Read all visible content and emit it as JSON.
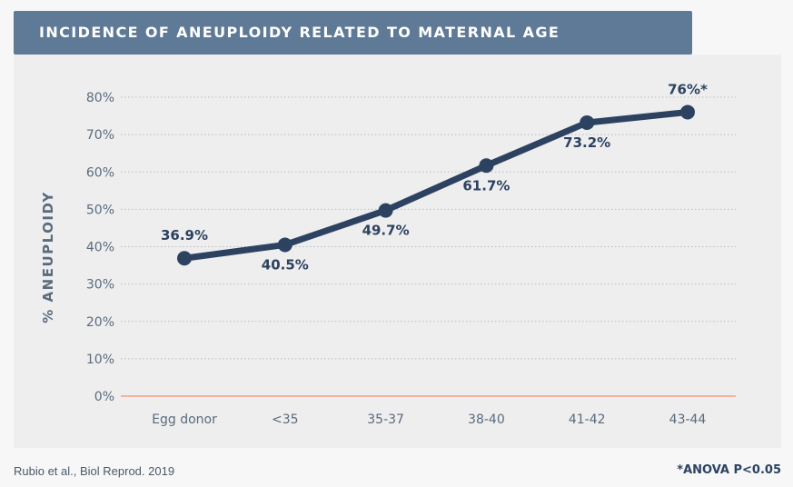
{
  "title": "INCIDENCE OF ANEUPLOIDY RELATED TO MATERNAL AGE",
  "source": "Rubio et al., Biol Reprod. 2019",
  "footnote": "*ANOVA P<0.05",
  "colors": {
    "title_bg": "#5e7a96",
    "line": "#2c4260",
    "zero_line": "#f2b49a",
    "grid": "#b8bcc2",
    "tick_text": "#5a6b7c"
  },
  "chart_data": {
    "type": "line",
    "title": "INCIDENCE OF ANEUPLOIDY RELATED TO MATERNAL AGE",
    "xlabel": "",
    "ylabel": "% ANEUPLOIDY",
    "categories": [
      "Egg donor",
      "<35",
      "35-37",
      "38-40",
      "41-42",
      "43-44"
    ],
    "series": [
      {
        "values": [
          36.9,
          40.5,
          49.7,
          61.7,
          73.2,
          76
        ],
        "data_labels": [
          "36.9%",
          "40.5%",
          "49.7%",
          "61.7%",
          "73.2%",
          "76%*"
        ],
        "label_positions": [
          "above",
          "below",
          "below",
          "below",
          "below",
          "above"
        ]
      }
    ],
    "ylim": [
      0,
      80
    ],
    "yticks": [
      0,
      10,
      20,
      30,
      40,
      50,
      60,
      70,
      80
    ],
    "ytick_labels": [
      "0%",
      "10%",
      "20%",
      "30%",
      "40%",
      "50%",
      "60%",
      "70%",
      "80%"
    ],
    "grid": "horizontal dotted",
    "legend": "none"
  }
}
